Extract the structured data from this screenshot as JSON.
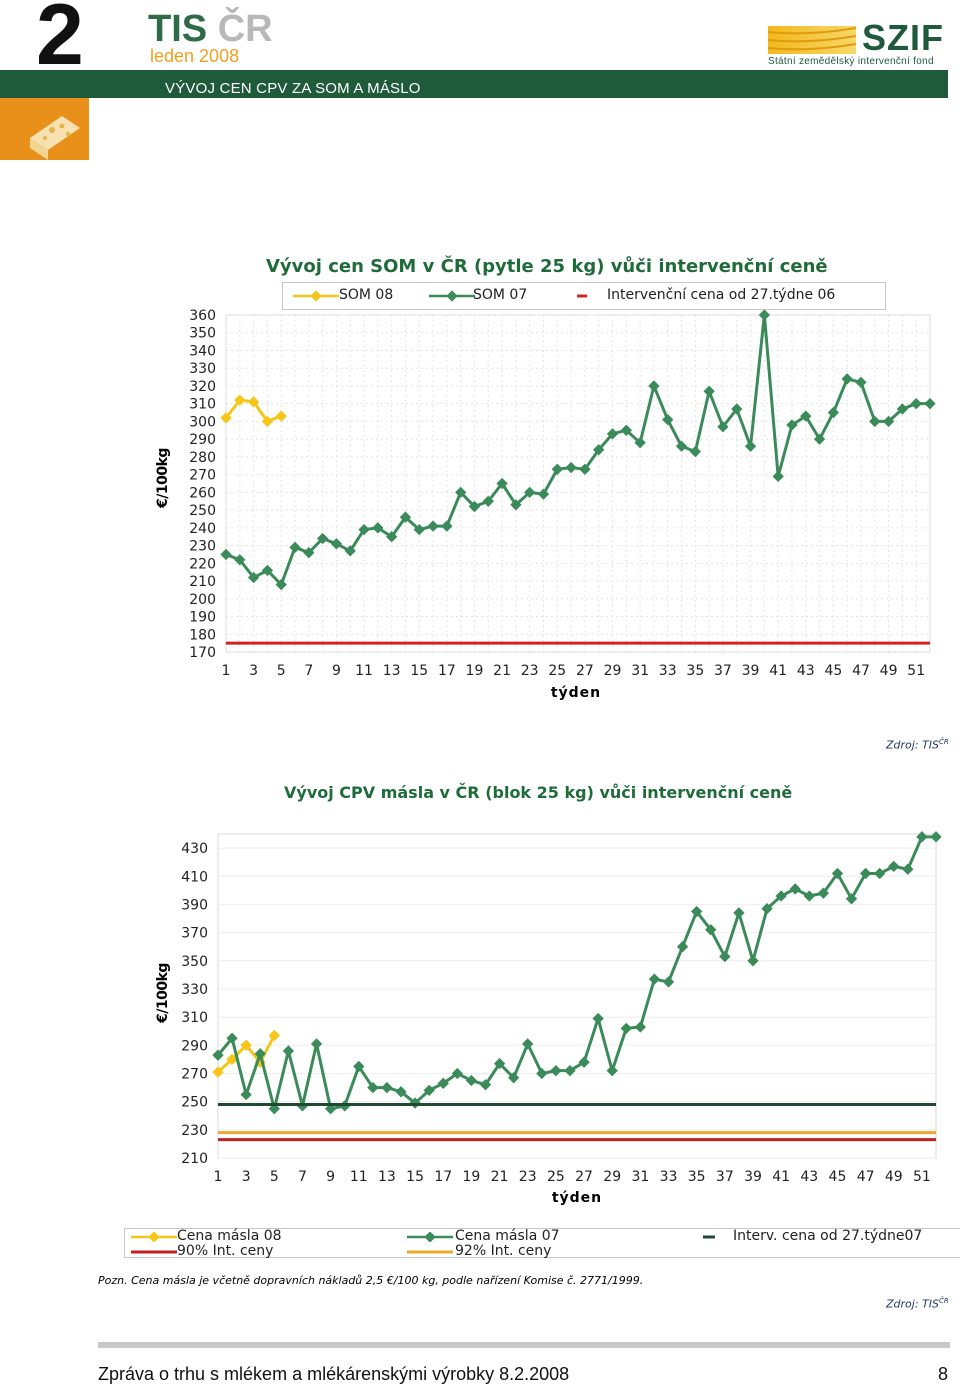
{
  "header": {
    "big_number": "2",
    "brand_tis": "TIS",
    "brand_cr": "ČR",
    "date": "leden 2008",
    "section_title": "VÝVOJ CEN CPV ZA SOM A MÁSLO",
    "logo_name": "SZIF",
    "logo_subtitle": "Státní zemědělský intervenční fond",
    "colors": {
      "green": "#1f5a3a",
      "orange": "#e8901a"
    }
  },
  "chart1": {
    "legend": {
      "s1": "SOM 08",
      "s2": "SOM 07",
      "s3": "Intervenční cena od 27.týdne 06"
    },
    "source": "Zdroj: TIS",
    "source_sup": "ČR"
  },
  "chart2": {
    "legend": {
      "s1": "Cena másla 08",
      "s2": "Cena másla 07",
      "s3": "Interv. cena od 27.týdne07",
      "s4": "90% Int. ceny",
      "s5": "92% Int. ceny"
    },
    "source": "Zdroj: TIS",
    "source_sup": "ČR"
  },
  "note": "Pozn. Cena másla je včetně dopravních nákladů 2,5 €/100 kg, podle nařízení Komise č. 2771/1999.",
  "footer": {
    "text": "Zpráva o trhu s mlékem a mlékárenskými výrobky 8.2.2008",
    "page": "8"
  },
  "chart_data": [
    {
      "type": "line",
      "title": "Vývoj cen SOM v ČR (pytle 25 kg) vůči intervenční ceně",
      "xlabel": "týden",
      "ylabel": "€/100kg",
      "ylim": [
        170,
        360
      ],
      "yticks": [
        170,
        180,
        190,
        200,
        210,
        220,
        230,
        240,
        250,
        260,
        270,
        280,
        290,
        300,
        310,
        320,
        330,
        340,
        350,
        360
      ],
      "xticks": [
        1,
        3,
        5,
        7,
        9,
        11,
        13,
        15,
        17,
        19,
        21,
        23,
        25,
        27,
        29,
        31,
        33,
        35,
        37,
        39,
        41,
        43,
        45,
        47,
        49,
        51
      ],
      "xlim": [
        1,
        52
      ],
      "series": [
        {
          "name": "SOM 08",
          "color": "#f5c518",
          "x": [
            1,
            2,
            3,
            4,
            5
          ],
          "values": [
            302,
            312,
            311,
            300,
            303
          ]
        },
        {
          "name": "SOM 07",
          "color": "#3a8a5a",
          "x": [
            1,
            2,
            3,
            4,
            5,
            6,
            7,
            8,
            9,
            10,
            11,
            12,
            13,
            14,
            15,
            16,
            17,
            18,
            19,
            20,
            21,
            22,
            23,
            24,
            25,
            26,
            27,
            28,
            29,
            30,
            31,
            32,
            33,
            34,
            35,
            36,
            37,
            38,
            39,
            40,
            41,
            42,
            43,
            44,
            45,
            46,
            47,
            48,
            49,
            50,
            51,
            52
          ],
          "values": [
            225,
            222,
            212,
            216,
            208,
            229,
            226,
            234,
            231,
            227,
            239,
            240,
            235,
            246,
            239,
            241,
            241,
            260,
            252,
            255,
            265,
            253,
            260,
            259,
            273,
            274,
            273,
            284,
            293,
            295,
            288,
            320,
            301,
            286,
            283,
            317,
            297,
            307,
            286,
            360,
            269,
            298,
            303,
            290,
            305,
            324,
            322,
            300,
            300,
            307,
            310,
            310
          ]
        },
        {
          "name": "Intervenční cena od 27.týdne 06",
          "color": "#d42020",
          "x": [
            1,
            52
          ],
          "values": [
            175,
            175
          ]
        }
      ]
    },
    {
      "type": "line",
      "title": "Vývoj CPV másla v ČR (blok 25 kg) vůči intervenční ceně",
      "xlabel": "týden",
      "ylabel": "€/100kg",
      "ylim": [
        210,
        440
      ],
      "yticks": [
        210,
        230,
        250,
        270,
        290,
        310,
        330,
        350,
        370,
        390,
        410,
        430
      ],
      "xticks": [
        1,
        3,
        5,
        7,
        9,
        11,
        13,
        15,
        17,
        19,
        21,
        23,
        25,
        27,
        29,
        31,
        33,
        35,
        37,
        39,
        41,
        43,
        45,
        47,
        49,
        51
      ],
      "xlim": [
        1,
        52
      ],
      "series": [
        {
          "name": "Cena másla 08",
          "color": "#f5c518",
          "x": [
            1,
            2,
            3,
            4,
            5
          ],
          "values": [
            271,
            280,
            290,
            278,
            297
          ]
        },
        {
          "name": "Cena másla 07",
          "color": "#3a8a5a",
          "x": [
            1,
            2,
            3,
            4,
            5,
            6,
            7,
            8,
            9,
            10,
            11,
            12,
            13,
            14,
            15,
            16,
            17,
            18,
            19,
            20,
            21,
            22,
            23,
            24,
            25,
            26,
            27,
            28,
            29,
            30,
            31,
            32,
            33,
            34,
            35,
            36,
            37,
            38,
            39,
            40,
            41,
            42,
            43,
            44,
            45,
            46,
            47,
            48,
            49,
            50,
            51,
            52
          ],
          "values": [
            283,
            295,
            255,
            284,
            245,
            286,
            247,
            291,
            245,
            247,
            275,
            260,
            260,
            257,
            249,
            258,
            263,
            270,
            265,
            262,
            277,
            267,
            291,
            270,
            272,
            272,
            278,
            309,
            272,
            302,
            303,
            337,
            335,
            360,
            385,
            372,
            353,
            384,
            350,
            387,
            396,
            401,
            396,
            398,
            412,
            394,
            412,
            412,
            417,
            415,
            438,
            438
          ]
        },
        {
          "name": "Interv. cena od 27.týdne07",
          "color": "#1f4a30",
          "x": [
            1,
            52
          ],
          "values": [
            248,
            248
          ]
        },
        {
          "name": "92% Int. ceny",
          "color": "#e8a830",
          "x": [
            1,
            52
          ],
          "values": [
            228,
            228
          ]
        },
        {
          "name": "90% Int. ceny",
          "color": "#c02020",
          "x": [
            1,
            52
          ],
          "values": [
            223,
            223
          ]
        }
      ]
    }
  ]
}
